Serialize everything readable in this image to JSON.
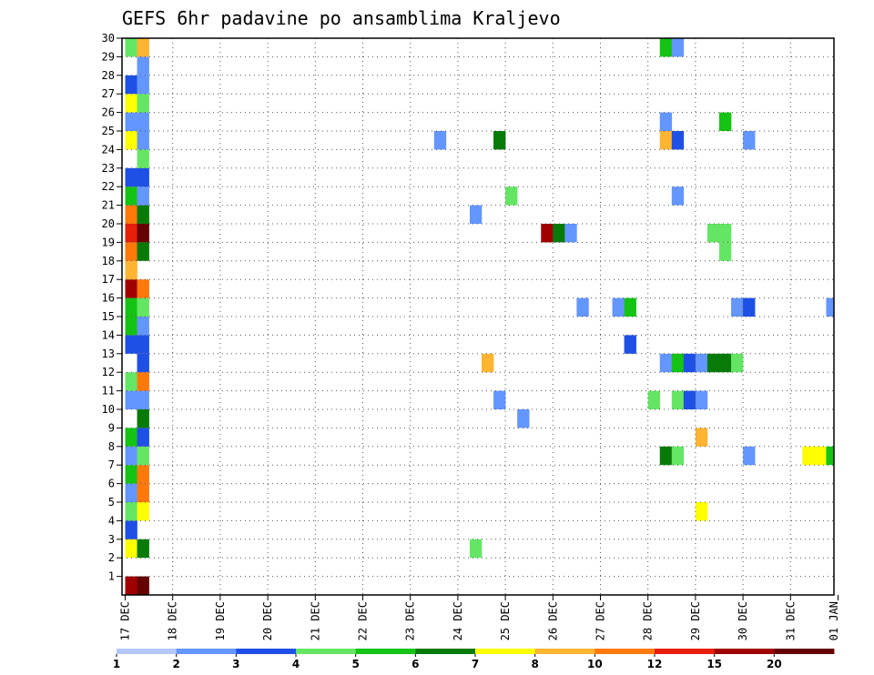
{
  "chart_data": {
    "type": "heatmap",
    "title": "GEFS 6hr padavine po ansamblima Kraljevo",
    "xlabel": "",
    "ylabel": "",
    "x_ticks": [
      "17 DEC",
      "18 DEC",
      "19 DEC",
      "20 DEC",
      "21 DEC",
      "22 DEC",
      "23 DEC",
      "24 DEC",
      "25 DEC",
      "26 DEC",
      "27 DEC",
      "28 DEC",
      "29 DEC",
      "30 DEC",
      "31 DEC",
      "01 JAN"
    ],
    "y_ticks": [
      "1",
      "2",
      "3",
      "4",
      "5",
      "6",
      "7",
      "8",
      "9",
      "10",
      "11",
      "12",
      "13",
      "14",
      "15",
      "16",
      "17",
      "18",
      "19",
      "20",
      "21",
      "22",
      "23",
      "24",
      "25",
      "26",
      "27",
      "28",
      "29",
      "30"
    ],
    "xlim_days": [
      0,
      15
    ],
    "ylim": [
      0,
      30
    ],
    "grid": true,
    "legend": {
      "placement": "bottom",
      "labels": [
        "1",
        "2",
        "3",
        "4",
        "5",
        "6",
        "7",
        "8",
        "10",
        "12",
        "15",
        "20"
      ],
      "colors": [
        "#b4c8ff",
        "#6496ff",
        "#1e50e6",
        "#64e664",
        "#14c314",
        "#087a08",
        "#ffff00",
        "#ffb432",
        "#ff780a",
        "#e61e0a",
        "#a00000",
        "#640000"
      ]
    },
    "cells": [
      {
        "m": 0,
        "s": 0,
        "c": 10
      },
      {
        "m": 0,
        "s": 1,
        "c": 11
      },
      {
        "m": 2,
        "s": 0,
        "c": 6
      },
      {
        "m": 2,
        "s": 1,
        "c": 5
      },
      {
        "m": 2,
        "s": 29,
        "c": 3
      },
      {
        "m": 3,
        "s": 0,
        "c": 2
      },
      {
        "m": 4,
        "s": 0,
        "c": 3
      },
      {
        "m": 4,
        "s": 1,
        "c": 6
      },
      {
        "m": 4,
        "s": 48,
        "c": 6
      },
      {
        "m": 5,
        "s": 0,
        "c": 1
      },
      {
        "m": 5,
        "s": 1,
        "c": 8
      },
      {
        "m": 6,
        "s": 0,
        "c": 4
      },
      {
        "m": 6,
        "s": 1,
        "c": 8
      },
      {
        "m": 7,
        "s": 0,
        "c": 1
      },
      {
        "m": 7,
        "s": 1,
        "c": 3
      },
      {
        "m": 7,
        "s": 45,
        "c": 5
      },
      {
        "m": 7,
        "s": 46,
        "c": 3
      },
      {
        "m": 7,
        "s": 52,
        "c": 1
      },
      {
        "m": 7,
        "s": 57,
        "c": 6
      },
      {
        "m": 7,
        "s": 58,
        "c": 6
      },
      {
        "m": 7,
        "s": 59,
        "c": 4
      },
      {
        "m": 8,
        "s": 0,
        "c": 4
      },
      {
        "m": 8,
        "s": 1,
        "c": 2
      },
      {
        "m": 8,
        "s": 48,
        "c": 7
      },
      {
        "m": 9,
        "s": 1,
        "c": 5
      },
      {
        "m": 9,
        "s": 33,
        "c": 1
      },
      {
        "m": 10,
        "s": 0,
        "c": 1
      },
      {
        "m": 10,
        "s": 1,
        "c": 1
      },
      {
        "m": 10,
        "s": 31,
        "c": 1
      },
      {
        "m": 10,
        "s": 44,
        "c": 3
      },
      {
        "m": 10,
        "s": 46,
        "c": 3
      },
      {
        "m": 10,
        "s": 47,
        "c": 2
      },
      {
        "m": 10,
        "s": 48,
        "c": 1
      },
      {
        "m": 11,
        "s": 0,
        "c": 3
      },
      {
        "m": 11,
        "s": 1,
        "c": 8
      },
      {
        "m": 12,
        "s": 1,
        "c": 2
      },
      {
        "m": 12,
        "s": 30,
        "c": 7
      },
      {
        "m": 12,
        "s": 45,
        "c": 1
      },
      {
        "m": 12,
        "s": 46,
        "c": 4
      },
      {
        "m": 12,
        "s": 47,
        "c": 2
      },
      {
        "m": 12,
        "s": 48,
        "c": 1
      },
      {
        "m": 12,
        "s": 49,
        "c": 5
      },
      {
        "m": 12,
        "s": 50,
        "c": 5
      },
      {
        "m": 12,
        "s": 51,
        "c": 3
      },
      {
        "m": 13,
        "s": 0,
        "c": 2
      },
      {
        "m": 13,
        "s": 1,
        "c": 2
      },
      {
        "m": 13,
        "s": 42,
        "c": 2
      },
      {
        "m": 14,
        "s": 0,
        "c": 4
      },
      {
        "m": 14,
        "s": 1,
        "c": 1
      },
      {
        "m": 15,
        "s": 0,
        "c": 4
      },
      {
        "m": 15,
        "s": 1,
        "c": 3
      },
      {
        "m": 15,
        "s": 38,
        "c": 1
      },
      {
        "m": 15,
        "s": 41,
        "c": 1
      },
      {
        "m": 15,
        "s": 42,
        "c": 4
      },
      {
        "m": 15,
        "s": 51,
        "c": 1
      },
      {
        "m": 15,
        "s": 52,
        "c": 2
      },
      {
        "m": 15,
        "s": 59,
        "c": 1
      },
      {
        "m": 16,
        "s": 0,
        "c": 10
      },
      {
        "m": 16,
        "s": 1,
        "c": 8
      },
      {
        "m": 17,
        "s": 0,
        "c": 7
      },
      {
        "m": 18,
        "s": 0,
        "c": 8
      },
      {
        "m": 18,
        "s": 1,
        "c": 5
      },
      {
        "m": 18,
        "s": 50,
        "c": 3
      },
      {
        "m": 19,
        "s": 0,
        "c": 9
      },
      {
        "m": 19,
        "s": 1,
        "c": 11
      },
      {
        "m": 19,
        "s": 35,
        "c": 10
      },
      {
        "m": 19,
        "s": 36,
        "c": 5
      },
      {
        "m": 19,
        "s": 37,
        "c": 1
      },
      {
        "m": 19,
        "s": 49,
        "c": 3
      },
      {
        "m": 19,
        "s": 50,
        "c": 3
      },
      {
        "m": 20,
        "s": 0,
        "c": 8
      },
      {
        "m": 20,
        "s": 1,
        "c": 5
      },
      {
        "m": 20,
        "s": 29,
        "c": 1
      },
      {
        "m": 21,
        "s": 0,
        "c": 4
      },
      {
        "m": 21,
        "s": 1,
        "c": 1
      },
      {
        "m": 21,
        "s": 32,
        "c": 3
      },
      {
        "m": 21,
        "s": 46,
        "c": 1
      },
      {
        "m": 22,
        "s": 0,
        "c": 2
      },
      {
        "m": 22,
        "s": 1,
        "c": 2
      },
      {
        "m": 23,
        "s": 1,
        "c": 3
      },
      {
        "m": 24,
        "s": 0,
        "c": 6
      },
      {
        "m": 24,
        "s": 1,
        "c": 1
      },
      {
        "m": 24,
        "s": 26,
        "c": 1
      },
      {
        "m": 24,
        "s": 31,
        "c": 5
      },
      {
        "m": 24,
        "s": 45,
        "c": 7
      },
      {
        "m": 24,
        "s": 46,
        "c": 2
      },
      {
        "m": 24,
        "s": 52,
        "c": 1
      },
      {
        "m": 25,
        "s": 0,
        "c": 1
      },
      {
        "m": 25,
        "s": 1,
        "c": 1
      },
      {
        "m": 25,
        "s": 45,
        "c": 1
      },
      {
        "m": 25,
        "s": 50,
        "c": 4
      },
      {
        "m": 26,
        "s": 0,
        "c": 6
      },
      {
        "m": 26,
        "s": 1,
        "c": 3
      },
      {
        "m": 27,
        "s": 0,
        "c": 2
      },
      {
        "m": 27,
        "s": 1,
        "c": 1
      },
      {
        "m": 28,
        "s": 1,
        "c": 1
      },
      {
        "m": 29,
        "s": 0,
        "c": 3
      },
      {
        "m": 29,
        "s": 1,
        "c": 7
      },
      {
        "m": 29,
        "s": 45,
        "c": 4
      },
      {
        "m": 29,
        "s": 46,
        "c": 1
      }
    ]
  }
}
